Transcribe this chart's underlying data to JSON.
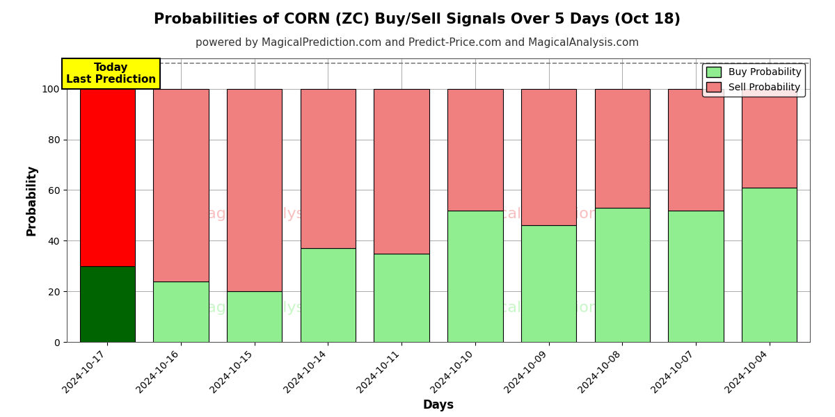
{
  "title": "Probabilities of CORN (ZC) Buy/Sell Signals Over 5 Days (Oct 18)",
  "subtitle": "powered by MagicalPrediction.com and Predict-Price.com and MagicalAnalysis.com",
  "xlabel": "Days",
  "ylabel": "Probability",
  "dates": [
    "2024-10-17",
    "2024-10-16",
    "2024-10-15",
    "2024-10-14",
    "2024-10-11",
    "2024-10-10",
    "2024-10-09",
    "2024-10-08",
    "2024-10-07",
    "2024-10-04"
  ],
  "buy_values": [
    30,
    24,
    20,
    37,
    35,
    52,
    46,
    53,
    52,
    61
  ],
  "sell_values": [
    70,
    76,
    80,
    63,
    65,
    48,
    54,
    47,
    48,
    39
  ],
  "buy_color_today": "#006400",
  "sell_color_today": "#ff0000",
  "buy_color_normal": "#90EE90",
  "sell_color_normal": "#F08080",
  "bar_edge_color": "#000000",
  "ylim": [
    0,
    112
  ],
  "yticks": [
    0,
    20,
    40,
    60,
    80,
    100
  ],
  "dashed_line_y": 110,
  "legend_buy_label": "Buy Probability",
  "legend_sell_label": "Sell Probability",
  "today_annotation": "Today\nLast Prediction",
  "background_color": "#ffffff",
  "grid_color": "#aaaaaa",
  "title_fontsize": 15,
  "subtitle_fontsize": 11,
  "axis_label_fontsize": 12,
  "tick_fontsize": 10
}
